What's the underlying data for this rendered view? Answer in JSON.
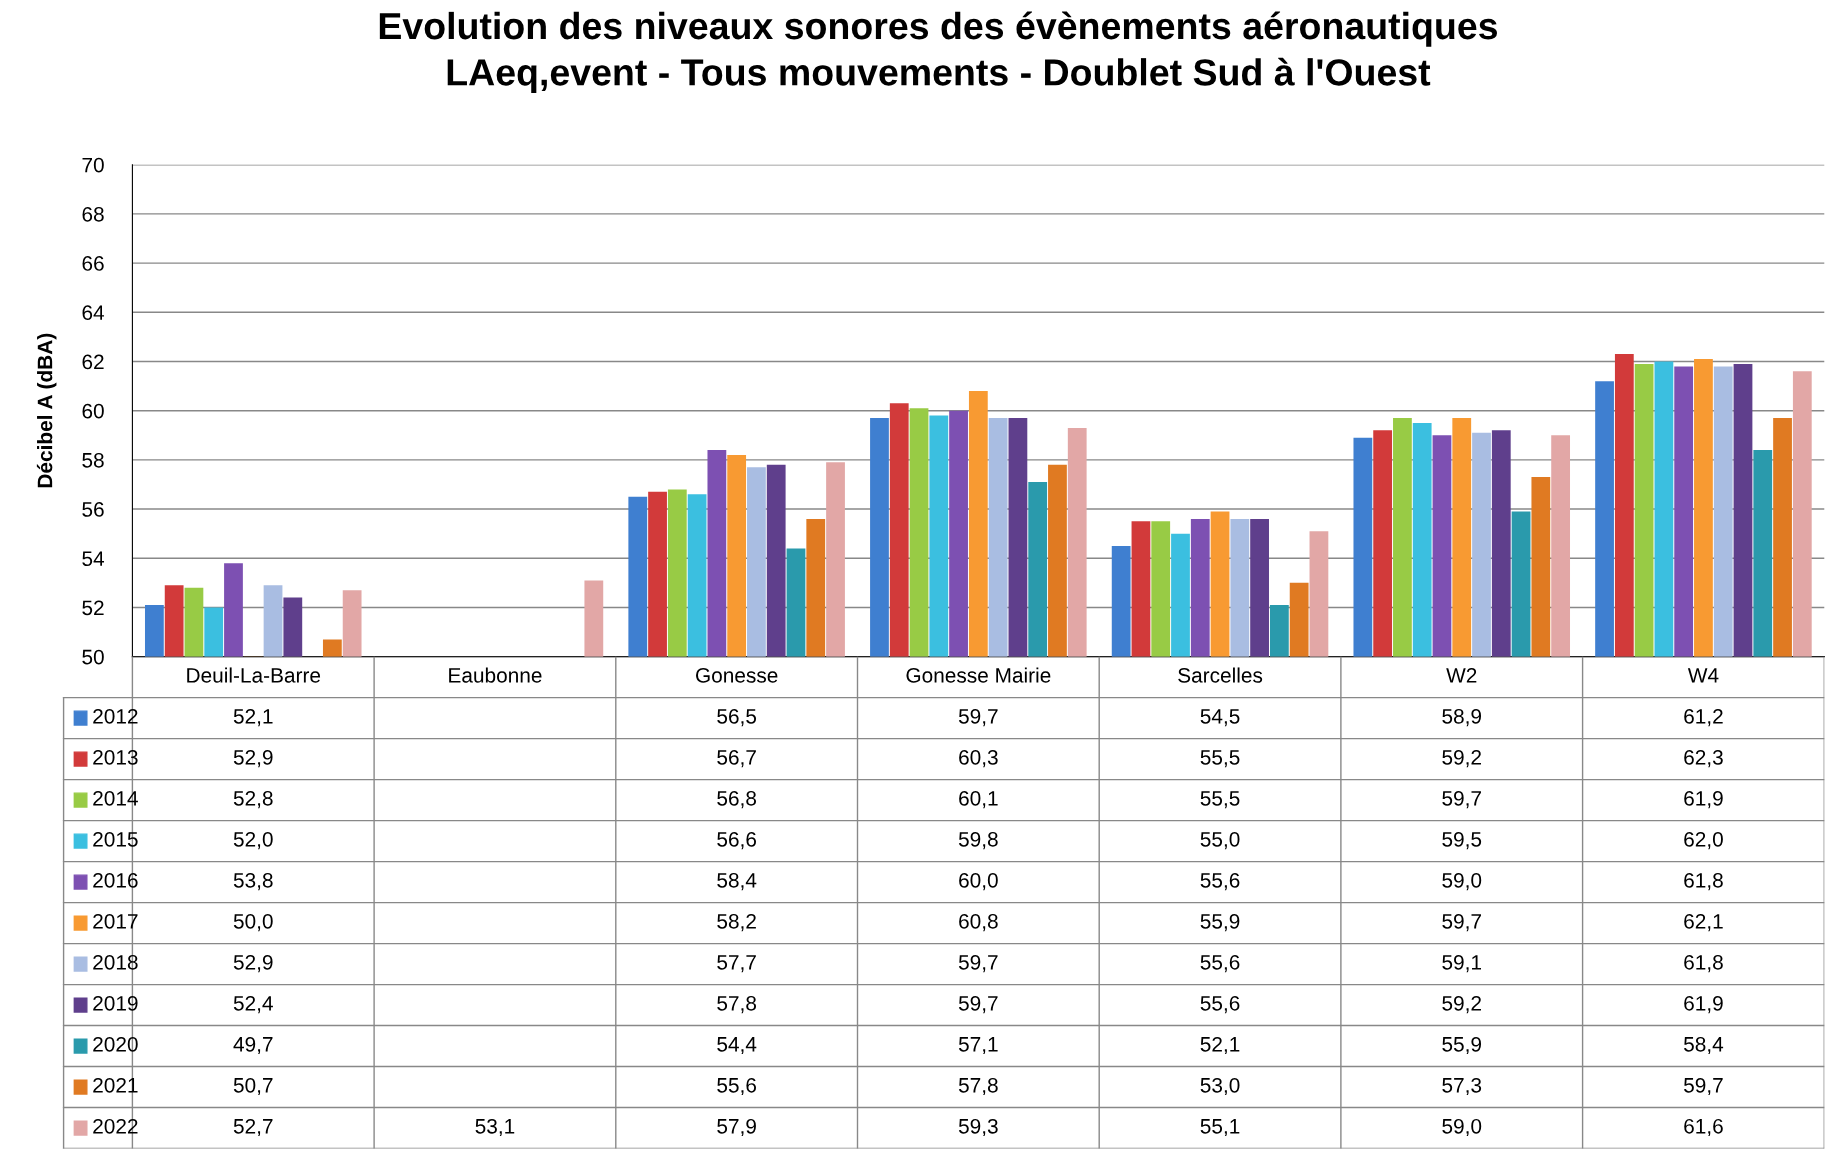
{
  "chart_data": {
    "type": "bar",
    "title": "Evolution des niveaux sonores des évènements aéronautiques\nLAeq,event - Tous mouvements - Doublet Sud à l'Ouest",
    "ylabel": "Décibel A (dBA)",
    "categories": [
      "Deuil-La-Barre",
      "Eaubonne",
      "Gonesse",
      "Gonesse Mairie",
      "Sarcelles",
      "W2",
      "W4"
    ],
    "ylim": [
      50,
      70
    ],
    "yticks": [
      50,
      52,
      54,
      56,
      58,
      60,
      62,
      64,
      66,
      68,
      70
    ],
    "grid": "y",
    "legend": "bottom left",
    "series": [
      {
        "name": "2012",
        "color": "#3f7fd0",
        "values": [
          52.1,
          null,
          56.5,
          59.7,
          54.5,
          58.9,
          61.2
        ],
        "value_labels": [
          "52,1",
          null,
          "56,5",
          "59,7",
          "54,5",
          "58,9",
          "61,2"
        ]
      },
      {
        "name": "2013",
        "color": "#d23a3a",
        "values": [
          52.9,
          null,
          56.7,
          60.3,
          55.5,
          59.2,
          62.3
        ],
        "value_labels": [
          "52,9",
          null,
          "56,7",
          "60,3",
          "55,5",
          "59,2",
          "62,3"
        ]
      },
      {
        "name": "2014",
        "color": "#98cb45",
        "values": [
          52.8,
          null,
          56.8,
          60.1,
          55.5,
          59.7,
          61.9
        ],
        "value_labels": [
          "52,8",
          null,
          "56,8",
          "60,1",
          "55,5",
          "59,7",
          "61,9"
        ]
      },
      {
        "name": "2015",
        "color": "#3bbfe0",
        "values": [
          52.0,
          null,
          56.6,
          59.8,
          55.0,
          59.5,
          62.0
        ],
        "value_labels": [
          "52,0",
          null,
          "56,6",
          "59,8",
          "55,0",
          "59,5",
          "62,0"
        ]
      },
      {
        "name": "2016",
        "color": "#7d50b2",
        "values": [
          53.8,
          null,
          58.4,
          60.0,
          55.6,
          59.0,
          61.8
        ],
        "value_labels": [
          "53,8",
          null,
          "58,4",
          "60,0",
          "55,6",
          "59,0",
          "61,8"
        ]
      },
      {
        "name": "2017",
        "color": "#f89a32",
        "values": [
          50.0,
          null,
          58.2,
          60.8,
          55.9,
          59.7,
          62.1
        ],
        "value_labels": [
          "50,0",
          null,
          "58,2",
          "60,8",
          "55,9",
          "59,7",
          "62,1"
        ]
      },
      {
        "name": "2018",
        "color": "#a9bde2",
        "values": [
          52.9,
          null,
          57.7,
          59.7,
          55.6,
          59.1,
          61.8
        ],
        "value_labels": [
          "52,9",
          null,
          "57,7",
          "59,7",
          "55,6",
          "59,1",
          "61,8"
        ]
      },
      {
        "name": "2019",
        "color": "#5f3f8c",
        "values": [
          52.4,
          null,
          57.8,
          59.7,
          55.6,
          59.2,
          61.9
        ],
        "value_labels": [
          "52,4",
          null,
          "57,8",
          "59,7",
          "55,6",
          "59,2",
          "61,9"
        ]
      },
      {
        "name": "2020",
        "color": "#2a9aac",
        "values": [
          null,
          null,
          54.4,
          57.1,
          52.1,
          55.9,
          58.4
        ],
        "value_labels": [
          "49,7",
          null,
          "54,4",
          "57,1",
          "52,1",
          "55,9",
          "58,4"
        ]
      },
      {
        "name": "2021",
        "color": "#e07a22",
        "values": [
          50.7,
          null,
          55.6,
          57.8,
          53.0,
          57.3,
          59.7
        ],
        "value_labels": [
          "50,7",
          null,
          "55,6",
          "57,8",
          "53,0",
          "57,3",
          "59,7"
        ]
      },
      {
        "name": "2022",
        "color": "#e2a7a6",
        "values": [
          52.7,
          53.1,
          57.9,
          59.3,
          55.1,
          59.0,
          61.6
        ],
        "value_labels": [
          "52,7",
          "53,1",
          "57,9",
          "59,3",
          "55,1",
          "59,0",
          "61,6"
        ]
      }
    ]
  }
}
